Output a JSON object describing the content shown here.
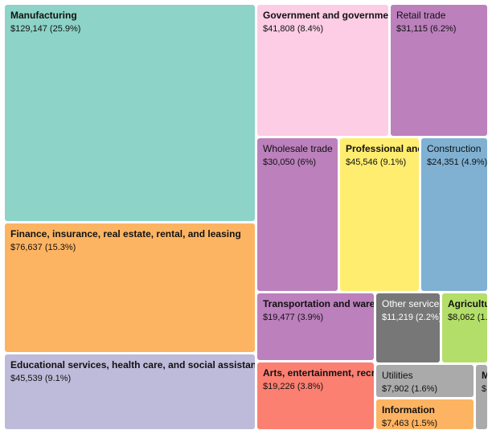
{
  "chart_data": {
    "type": "treemap",
    "title": "",
    "items": [
      {
        "name": "Manufacturing",
        "value": 129147,
        "label": "$129,147 (25.9%)",
        "color": "#8dd3c7",
        "bold": true
      },
      {
        "name": "Government and government enterprises",
        "value": 41808,
        "label": "$41,808 (8.4%)",
        "color": "#fccde5",
        "bold": true
      },
      {
        "name": "Retail trade",
        "value": 31115,
        "label": "$31,115 (6.2%)",
        "color": "#bc80bd",
        "bold": false
      },
      {
        "name": "Wholesale trade",
        "value": 30050,
        "label": "$30,050 (6%)",
        "color": "#bc80bd",
        "bold": false
      },
      {
        "name": "Professional and business services",
        "value": 45546,
        "label": "$45,546 (9.1%)",
        "color": "#ffed6f",
        "bold": true
      },
      {
        "name": "Construction",
        "value": 24351,
        "label": "$24,351 (4.9%)",
        "color": "#80b1d3",
        "bold": false
      },
      {
        "name": "Finance, insurance, real estate, rental, and leasing",
        "value": 76637,
        "label": "$76,637 (15.3%)",
        "color": "#fdb462",
        "bold": true
      },
      {
        "name": "Transportation and warehousing",
        "value": 19477,
        "label": "$19,477 (3.9%)",
        "color": "#bc80bd",
        "bold": true
      },
      {
        "name": "Other services",
        "value": 11219,
        "label": "$11,219 (2.2%)",
        "color": "#777777",
        "bold": false
      },
      {
        "name": "Agriculture",
        "value": 8062,
        "label": "$8,062 (1.",
        "color": "#b3de69",
        "bold": true
      },
      {
        "name": "Educational services, health care, and social assistance",
        "value": 45539,
        "label": "$45,539 (9.1%)",
        "color": "#bebada",
        "bold": true
      },
      {
        "name": "Arts, entertainment, recreation",
        "value": 19226,
        "label": "$19,226 (3.8%)",
        "color": "#fb8072",
        "bold": true
      },
      {
        "name": "Utilities",
        "value": 7902,
        "label": "$7,902 (1.6%)",
        "color": "#aaaaaa",
        "bold": false
      },
      {
        "name": "Information",
        "value": 7463,
        "label": "$7,463 (1.5%)",
        "color": "#fdb462",
        "bold": true
      },
      {
        "name": "M",
        "value": null,
        "label": "$",
        "color": "#aaaaaa",
        "bold": true
      }
    ]
  }
}
